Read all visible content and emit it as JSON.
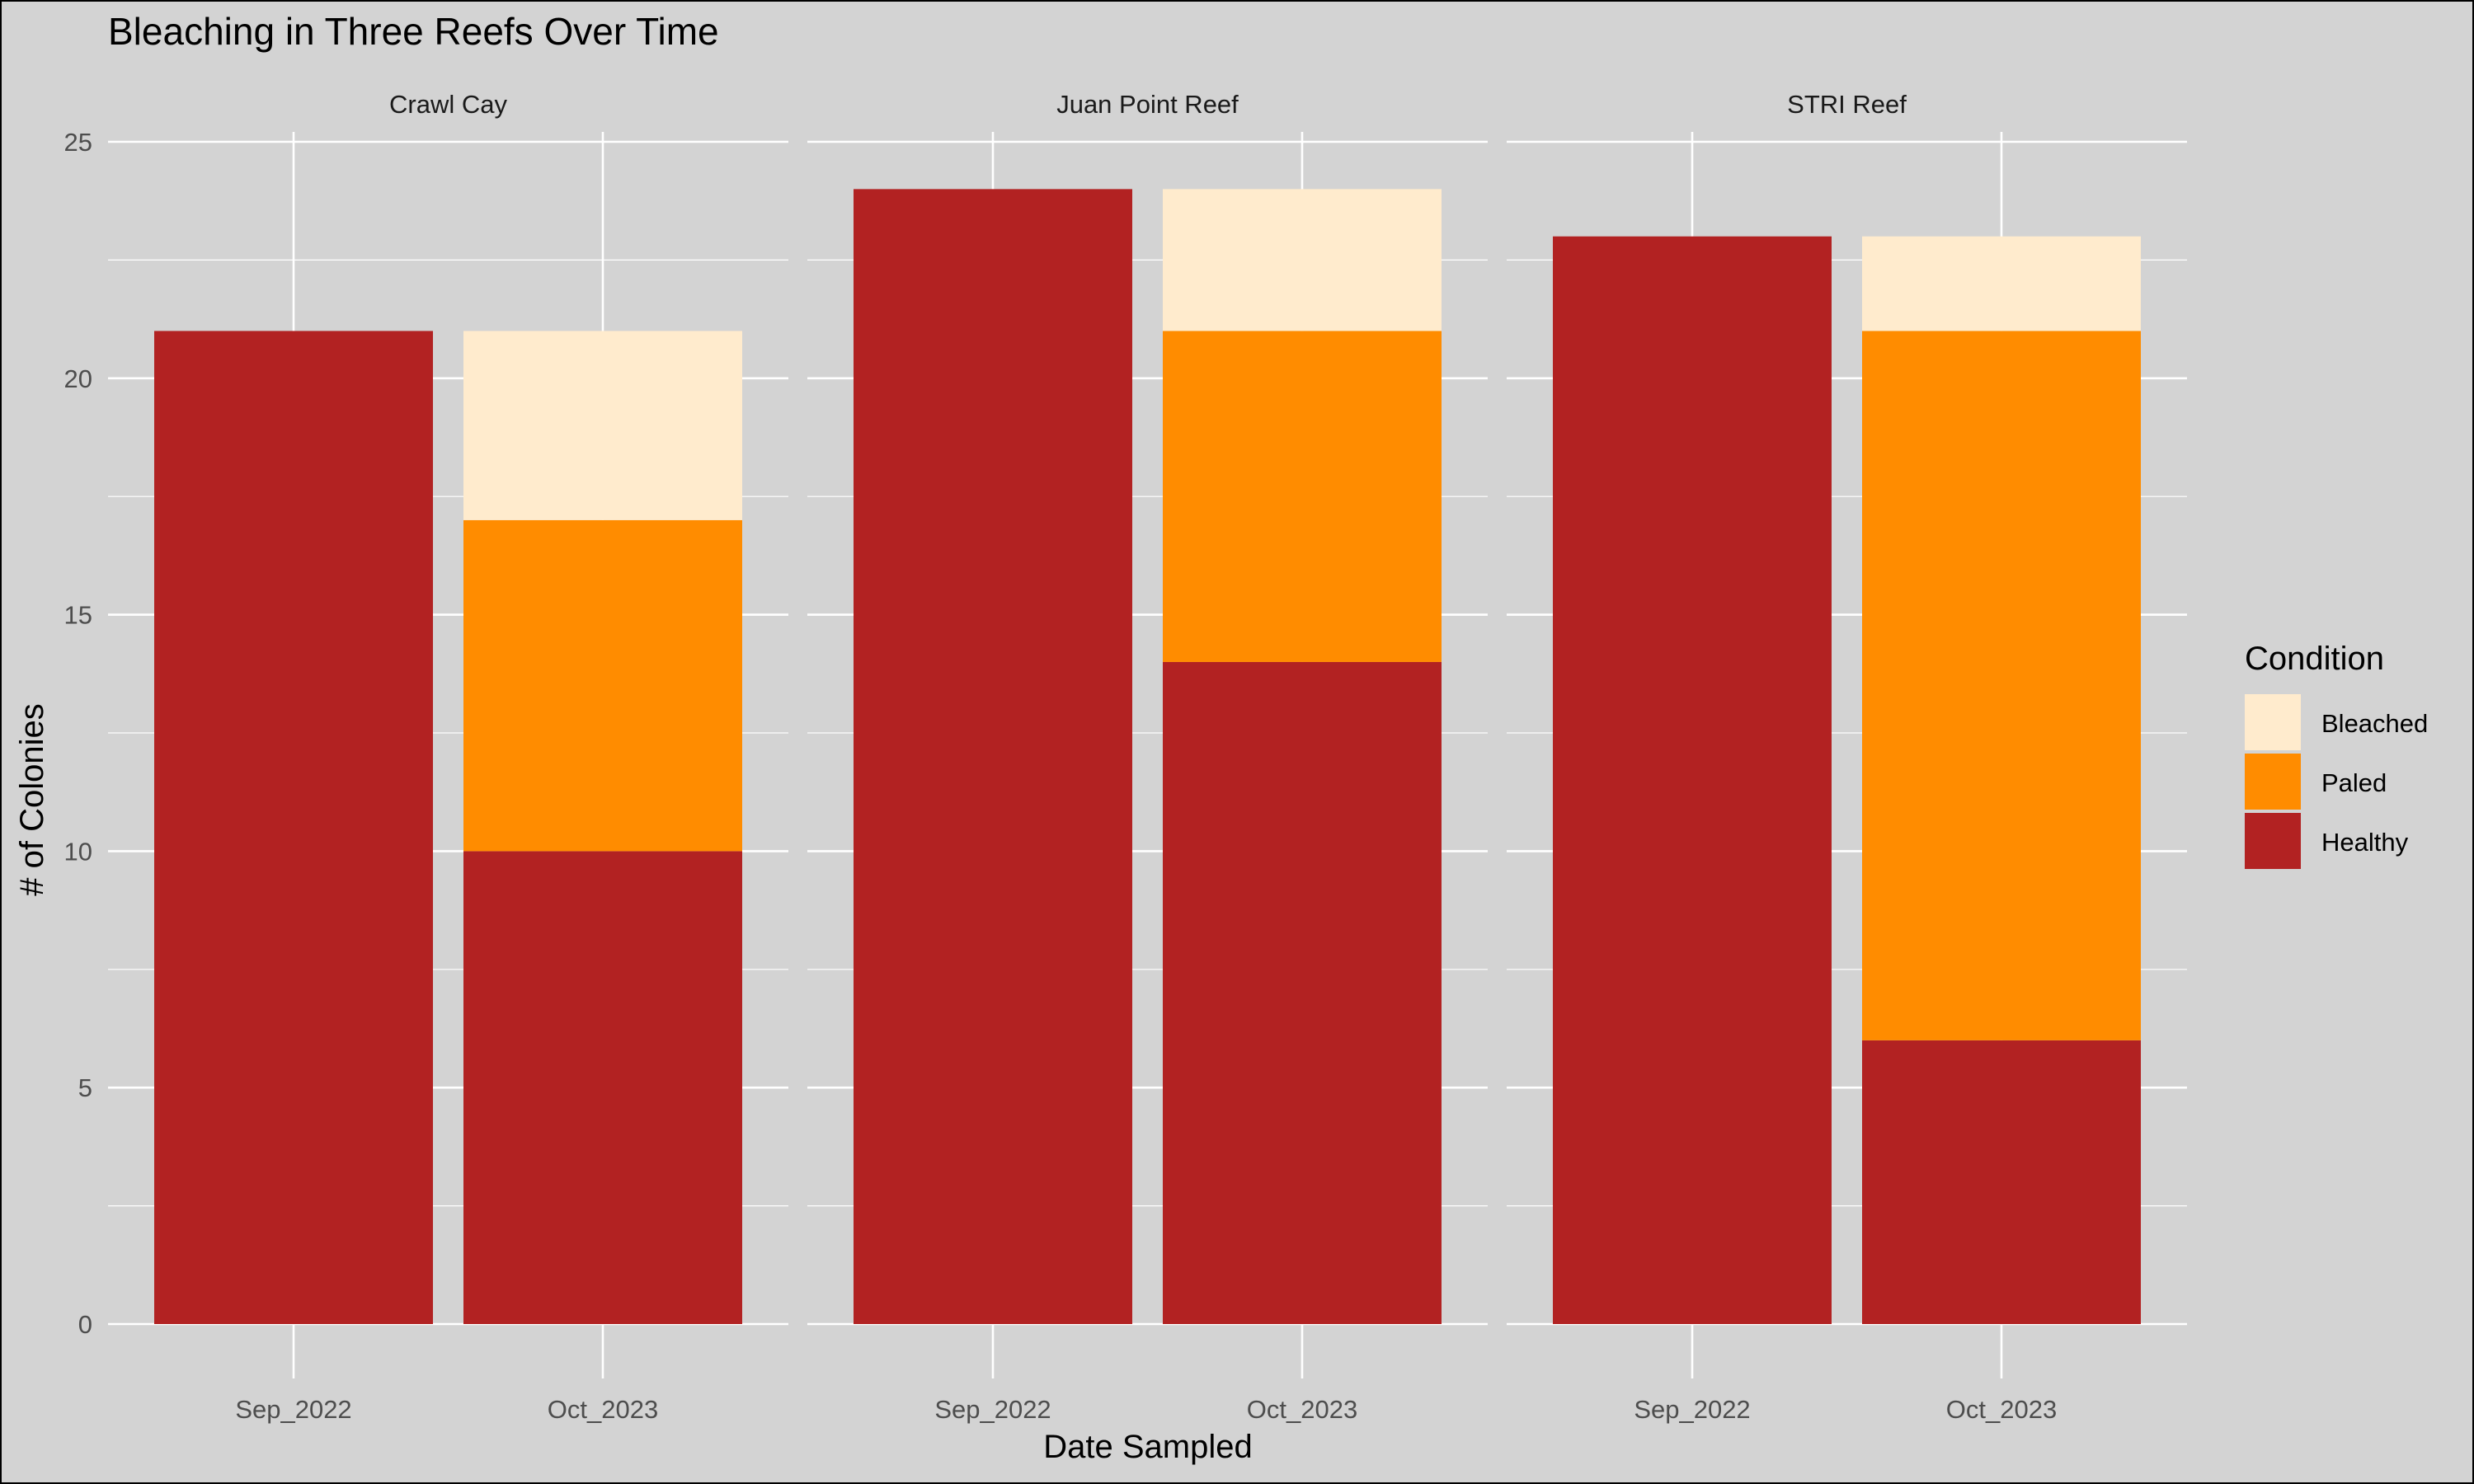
{
  "chart_data": {
    "type": "bar",
    "stacked": true,
    "title": "Bleaching in Three Reefs Over Time",
    "xlabel": "Date Sampled",
    "ylabel": "# of Colonies",
    "ylim": [
      0,
      25
    ],
    "yticks": [
      0,
      5,
      10,
      15,
      20,
      25
    ],
    "grid": true,
    "legend": {
      "title": "Condition",
      "position": "right",
      "entries": [
        "Bleached",
        "Paled",
        "Healthy"
      ]
    },
    "colors": {
      "Healthy": "#b22222",
      "Paled": "#ff8c00",
      "Bleached": "#ffebcd",
      "background": "#d3d3d3",
      "grid": "#ffffff"
    },
    "categories": [
      "Sep_2022",
      "Oct_2023"
    ],
    "facets": [
      {
        "name": "Crawl Cay",
        "series": [
          {
            "name": "Healthy",
            "values": [
              21,
              10
            ]
          },
          {
            "name": "Paled",
            "values": [
              0,
              7
            ]
          },
          {
            "name": "Bleached",
            "values": [
              0,
              4
            ]
          }
        ]
      },
      {
        "name": "Juan Point Reef",
        "series": [
          {
            "name": "Healthy",
            "values": [
              24,
              14
            ]
          },
          {
            "name": "Paled",
            "values": [
              0,
              7
            ]
          },
          {
            "name": "Bleached",
            "values": [
              0,
              3
            ]
          }
        ]
      },
      {
        "name": "STRI Reef",
        "series": [
          {
            "name": "Healthy",
            "values": [
              23,
              6
            ]
          },
          {
            "name": "Paled",
            "values": [
              0,
              15
            ]
          },
          {
            "name": "Bleached",
            "values": [
              0,
              2
            ]
          }
        ]
      }
    ]
  }
}
